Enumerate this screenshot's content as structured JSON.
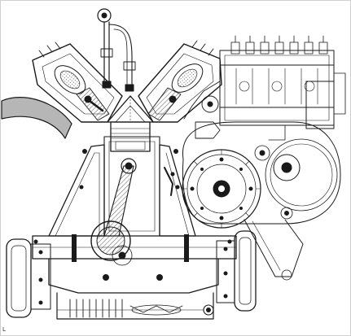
{
  "figure": {
    "kind": "engine-cross-section-drawing",
    "line_color": "#1a1a1a",
    "shade_color": "#7a7a7a",
    "background": "#ffffff",
    "parts": [
      "intake-pipe",
      "left-cylinder-head",
      "right-cylinder-head",
      "left-spark-plug",
      "right-spark-plug",
      "combustion-chamber",
      "piston",
      "connecting-rod",
      "crankshaft-journal",
      "crankcase",
      "oil-sump",
      "left-mount-bracket",
      "right-mount-bracket",
      "camshaft-drive-gear",
      "timing-gear-housing",
      "fuel-injection-pump",
      "exhaust-pipe"
    ],
    "corner_mark": "L"
  }
}
